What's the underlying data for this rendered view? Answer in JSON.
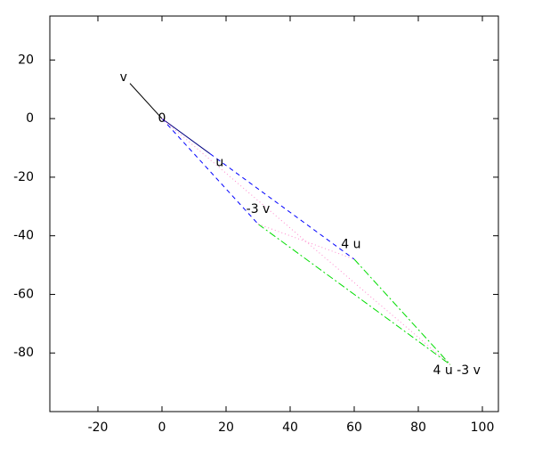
{
  "chart_data": {
    "type": "vector",
    "xlim": [
      -35,
      105
    ],
    "ylim": [
      -100,
      35
    ],
    "xticks": [
      -20,
      0,
      20,
      40,
      60,
      80,
      100
    ],
    "yticks": [
      20,
      0,
      -20,
      -40,
      -60,
      -80
    ],
    "series": [
      {
        "color": "#000000",
        "style": "solid",
        "x": [
          0,
          -10
        ],
        "y": [
          0,
          12
        ]
      },
      {
        "color": "#000080",
        "style": "solid",
        "x": [
          0,
          15
        ],
        "y": [
          0,
          -12
        ]
      },
      {
        "color": "#0000ff",
        "style": "dashed",
        "x": [
          0,
          30
        ],
        "y": [
          0,
          -36
        ]
      },
      {
        "color": "#0000ff",
        "style": "dashed",
        "x": [
          15,
          60
        ],
        "y": [
          -12,
          -48
        ]
      },
      {
        "color": "#00dd00",
        "style": "dashdot",
        "x": [
          30,
          90
        ],
        "y": [
          -36,
          -84
        ]
      },
      {
        "color": "#00dd00",
        "style": "dashdot",
        "x": [
          60,
          90
        ],
        "y": [
          -48,
          -84
        ]
      },
      {
        "color": "#ff88cc",
        "style": "dotted",
        "x": [
          0,
          90
        ],
        "y": [
          0,
          -84
        ]
      },
      {
        "color": "#ff88cc",
        "style": "dotted",
        "x": [
          30,
          60
        ],
        "y": [
          -36,
          -48
        ]
      }
    ],
    "annotations": [
      {
        "text": "v",
        "x": -12,
        "y": 14
      },
      {
        "text": "0",
        "x": 0,
        "y": 0
      },
      {
        "text": "u",
        "x": 18,
        "y": -15
      },
      {
        "text": "-3 v",
        "x": 30,
        "y": -31
      },
      {
        "text": "4 u",
        "x": 59,
        "y": -43
      },
      {
        "text": "4 u -3 v",
        "x": 92,
        "y": -86
      }
    ]
  }
}
